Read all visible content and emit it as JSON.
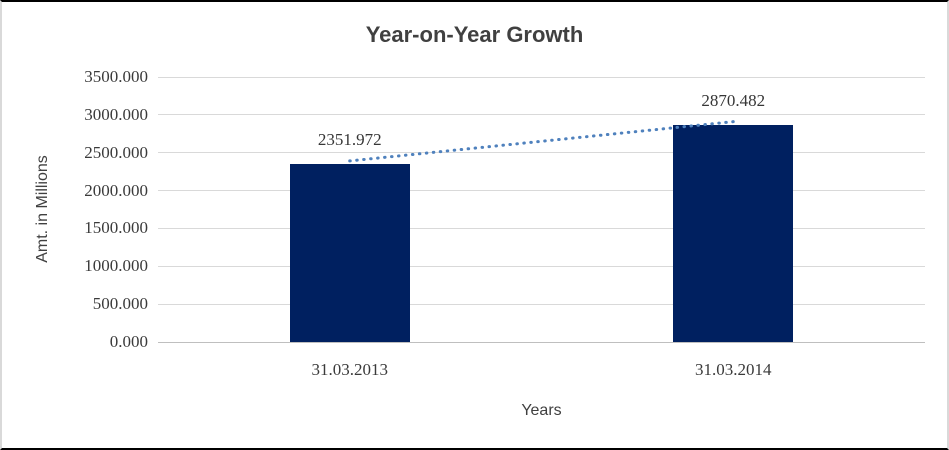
{
  "chart_data": {
    "type": "bar",
    "title": "Year-on-Year Growth",
    "xlabel": "Years",
    "ylabel": "Amt. in Millions",
    "categories": [
      "31.03.2013",
      "31.03.2014"
    ],
    "values": [
      2351.972,
      2870.482
    ],
    "data_labels": [
      "2351.972",
      "2870.482"
    ],
    "y_ticks": [
      "0.000",
      "500.000",
      "1000.000",
      "1500.000",
      "2000.000",
      "2500.000",
      "3000.000",
      "3500.000"
    ],
    "ylim": [
      0,
      3500
    ],
    "grid": true,
    "legend": "none",
    "trendline": true,
    "colors": {
      "bar": "#002060",
      "trendline": "#4f81bd",
      "gridline": "#d9d9d9",
      "axis_line": "#bfbfbf",
      "title_text": "#404040",
      "label_text": "#3a3a3a",
      "frame_top_bottom": "#000000",
      "frame_sides": "#d9d9d9"
    }
  }
}
